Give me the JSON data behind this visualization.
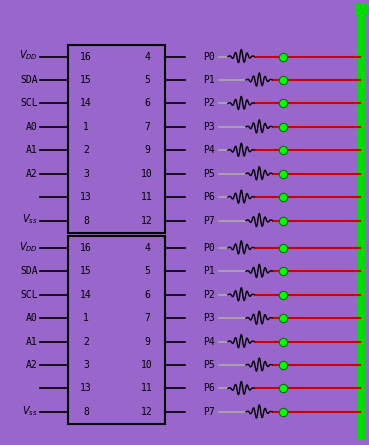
{
  "bg_color": "#9966cc",
  "box_border_color": "#000000",
  "line_color_black": "#000000",
  "line_color_red": "#cc0000",
  "line_color_gray": "#aaaaaa",
  "green_bar_color": "#00dd00",
  "green_dot_color": "#00ff00",
  "chip_left_labels": [
    "VDD",
    "SDA",
    "SCL",
    "A0",
    "A1",
    "A2",
    "",
    "Vss"
  ],
  "chip_left_pins": [
    16,
    15,
    14,
    1,
    2,
    3,
    13,
    8
  ],
  "chip_right_pins": [
    4,
    5,
    6,
    7,
    9,
    10,
    11,
    12
  ],
  "port_labels": [
    "P0",
    "P1",
    "P2",
    "P3",
    "P4",
    "P5",
    "P6",
    "P7"
  ],
  "font_size": 7,
  "fig_w": 3.69,
  "fig_h": 4.45,
  "dpi": 100
}
